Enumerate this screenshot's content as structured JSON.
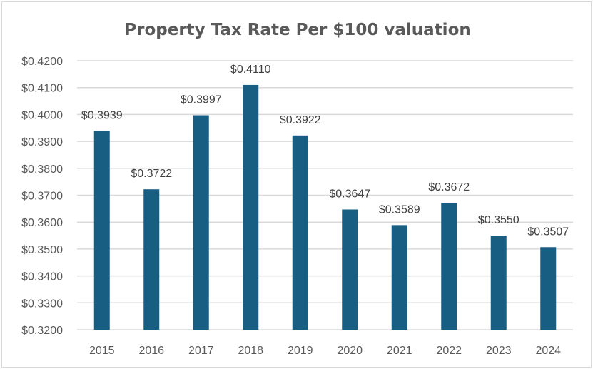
{
  "chart_data": {
    "type": "bar",
    "title": "Property Tax Rate Per $100 valuation",
    "xlabel": "",
    "ylabel": "",
    "categories": [
      "2015",
      "2016",
      "2017",
      "2018",
      "2019",
      "2020",
      "2021",
      "2022",
      "2023",
      "2024"
    ],
    "values": [
      0.3939,
      0.3722,
      0.3997,
      0.411,
      0.3922,
      0.3647,
      0.3589,
      0.3672,
      0.355,
      0.3507
    ],
    "data_labels": [
      "$0.3939",
      "$0.3722",
      "$0.3997",
      "$0.4110",
      "$0.3922",
      "$0.3647",
      "$0.3589",
      "$0.3672",
      "$0.3550",
      "$0.3507"
    ],
    "ylim": [
      0.32,
      0.42
    ],
    "yticks": [
      0.32,
      0.33,
      0.34,
      0.35,
      0.36,
      0.37,
      0.38,
      0.39,
      0.4,
      0.41,
      0.42
    ],
    "ytick_labels": [
      "$0.3200",
      "$0.3300",
      "$0.3400",
      "$0.3500",
      "$0.3600",
      "$0.3700",
      "$0.3800",
      "$0.3900",
      "$0.4000",
      "$0.4100",
      "$0.4200"
    ],
    "grid": true,
    "legend": "none",
    "colors": {
      "bar": "#175e82",
      "grid": "#d9d9d9",
      "text": "#595959"
    }
  }
}
